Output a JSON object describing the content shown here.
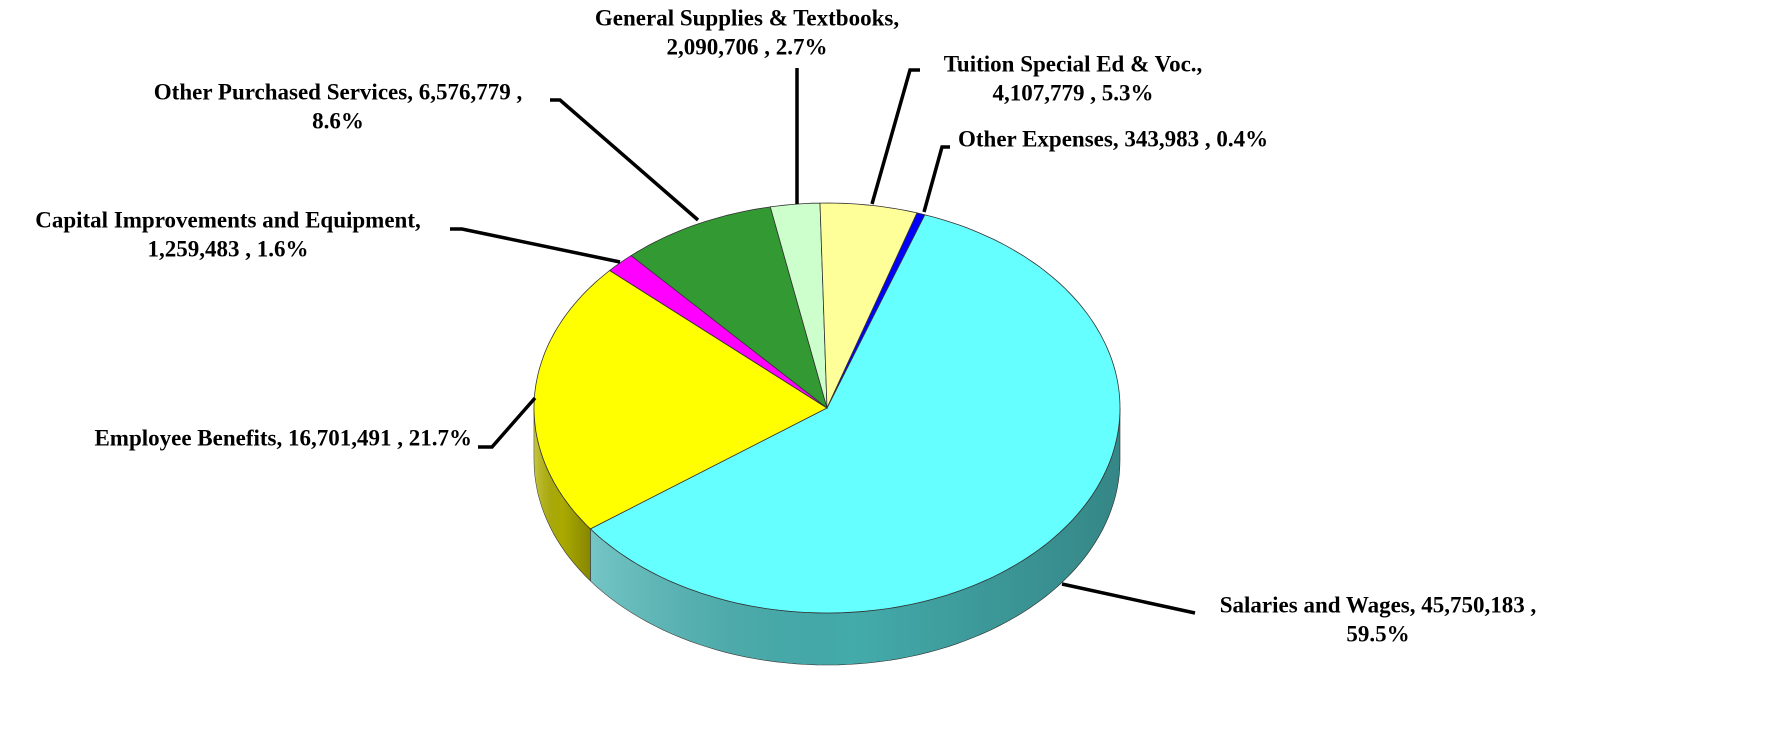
{
  "chart_data": {
    "type": "pie3d",
    "categories": [
      "Salaries and Wages",
      "Employee Benefits",
      "Capital Improvements and Equipment",
      "Other Purchased Services",
      "General Supplies & Textbooks",
      "Tuition Special Ed & Voc.",
      "Other Expenses"
    ],
    "values": [
      45750183,
      16701491,
      1259483,
      6576779,
      2090706,
      4107779,
      343983
    ],
    "labels": [
      [
        "Salaries and Wages,  45,750,183 ,",
        "59.5%"
      ],
      [
        "Employee Benefits,  16,701,491 , 21.7%"
      ],
      [
        "Capital Improvements and Equipment,",
        "1,259,483 , 1.6%"
      ],
      [
        "Other Purchased Services,  6,576,779 ,",
        "8.6%"
      ],
      [
        "General Supplies & Textbooks,",
        "2,090,706 , 2.7%"
      ],
      [
        "Tuition Special Ed & Voc.,",
        "4,107,779 , 5.3%"
      ],
      [
        "Other Expenses,  343,983 , 0.4%"
      ]
    ],
    "colors": [
      "#66ffff",
      "#ffff00",
      "#ff00ff",
      "#339933",
      "#ccffcc",
      "#ffff99",
      "#0000ff"
    ]
  }
}
